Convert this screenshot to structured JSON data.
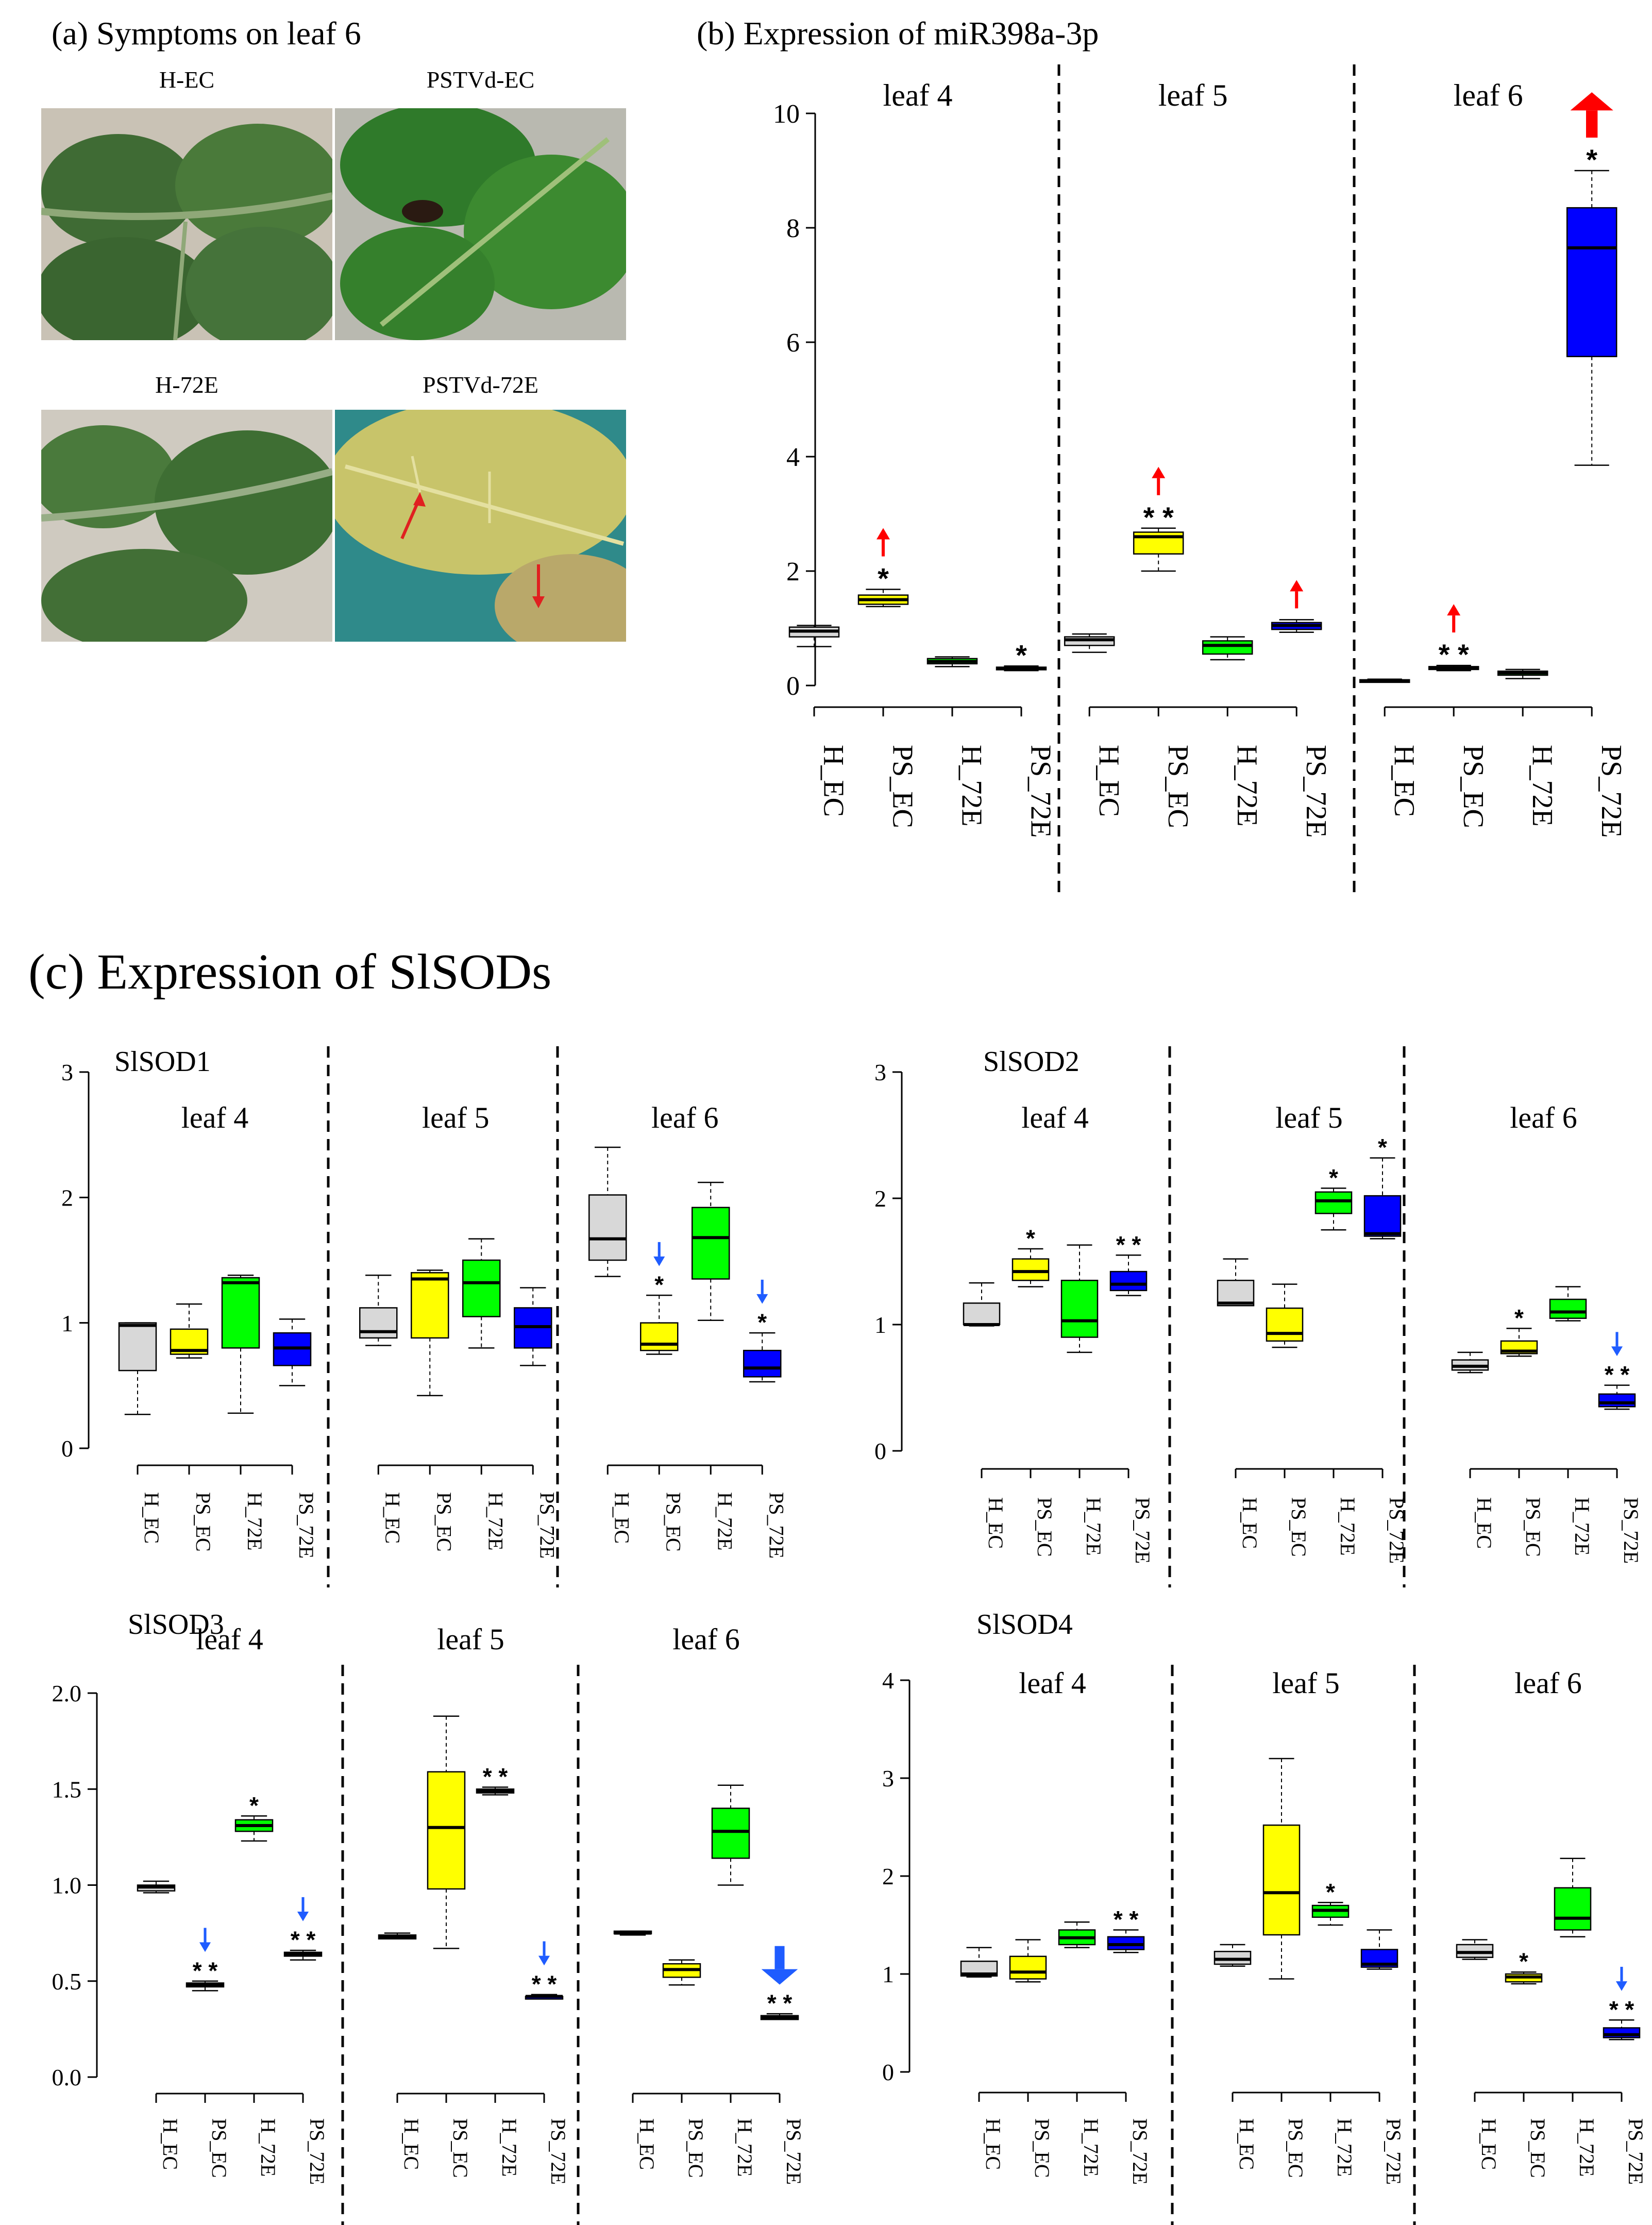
{
  "panel_a": {
    "title": "(a) Symptoms on leaf 6",
    "photos": [
      {
        "label": "H-EC",
        "tone": "healthy"
      },
      {
        "label": "PSTVd-EC",
        "tone": "necrotic"
      },
      {
        "label": "H-72E",
        "tone": "healthy"
      },
      {
        "label": "PSTVd-72E",
        "tone": "yellow"
      }
    ]
  },
  "panel_b_title": "(b) Expression of miR398a-3p",
  "panel_c_title": "(c) Expression of SlSODs",
  "colors": {
    "H_EC": "#d8d8d8",
    "PS_EC": "#ffff00",
    "H_72E": "#00ff00",
    "PS_72E": "#0000ff",
    "up_arrow": "#ff0000",
    "down_arrow": "#1f5cff"
  },
  "chart_data": [
    {
      "id": "miR398",
      "type": "box",
      "title": "",
      "ylim": [
        0,
        10
      ],
      "yticks": [
        "0",
        "2",
        "4",
        "6",
        "8",
        "10"
      ],
      "ytick_values": [
        0,
        2,
        4,
        6,
        8,
        10
      ],
      "categories": [
        "H_EC",
        "PS_EC",
        "H_72E",
        "PS_72E"
      ],
      "groups": [
        {
          "label": "leaf 4",
          "boxes": [
            {
              "cat": "H_EC",
              "min": 0.68,
              "q1": 0.85,
              "med": 0.95,
              "q3": 1.02,
              "max": 1.05,
              "sig": "",
              "arrow": ""
            },
            {
              "cat": "PS_EC",
              "min": 1.38,
              "q1": 1.42,
              "med": 1.5,
              "q3": 1.58,
              "max": 1.68,
              "sig": "*",
              "arrow": "up"
            },
            {
              "cat": "H_72E",
              "min": 0.33,
              "q1": 0.38,
              "med": 0.42,
              "q3": 0.47,
              "max": 0.5,
              "sig": "",
              "arrow": ""
            },
            {
              "cat": "PS_72E",
              "min": 0.26,
              "q1": 0.28,
              "med": 0.3,
              "q3": 0.32,
              "max": 0.34,
              "sig": "*",
              "arrow": ""
            }
          ]
        },
        {
          "label": "leaf 5",
          "boxes": [
            {
              "cat": "H_EC",
              "min": 0.58,
              "q1": 0.7,
              "med": 0.8,
              "q3": 0.85,
              "max": 0.9,
              "sig": "",
              "arrow": ""
            },
            {
              "cat": "PS_EC",
              "min": 2.0,
              "q1": 2.3,
              "med": 2.6,
              "q3": 2.68,
              "max": 2.75,
              "sig": "* *",
              "arrow": "up"
            },
            {
              "cat": "H_72E",
              "min": 0.45,
              "q1": 0.55,
              "med": 0.7,
              "q3": 0.78,
              "max": 0.85,
              "sig": "",
              "arrow": ""
            },
            {
              "cat": "PS_72E",
              "min": 0.93,
              "q1": 0.98,
              "med": 1.05,
              "q3": 1.1,
              "max": 1.15,
              "sig": "",
              "arrow": "up"
            }
          ]
        },
        {
          "label": "leaf 6",
          "boxes": [
            {
              "cat": "H_EC",
              "min": 0.06,
              "q1": 0.07,
              "med": 0.08,
              "q3": 0.1,
              "max": 0.11,
              "sig": "",
              "arrow": ""
            },
            {
              "cat": "PS_EC",
              "min": 0.26,
              "q1": 0.28,
              "med": 0.31,
              "q3": 0.33,
              "max": 0.35,
              "sig": "* *",
              "arrow": "up"
            },
            {
              "cat": "H_72E",
              "min": 0.12,
              "q1": 0.18,
              "med": 0.22,
              "q3": 0.25,
              "max": 0.28,
              "sig": "",
              "arrow": ""
            },
            {
              "cat": "PS_72E",
              "min": 3.85,
              "q1": 5.75,
              "med": 7.65,
              "q3": 8.35,
              "max": 9.0,
              "sig": "*",
              "arrow": "up-big"
            }
          ]
        }
      ]
    },
    {
      "id": "SlSOD1",
      "type": "box",
      "title": "SlSOD1",
      "ylim": [
        0,
        3
      ],
      "yticks": [
        "0",
        "1",
        "2",
        "3"
      ],
      "ytick_values": [
        0,
        1,
        2,
        3
      ],
      "categories": [
        "H_EC",
        "PS_EC",
        "H_72E",
        "PS_72E"
      ],
      "groups": [
        {
          "label": "leaf 4",
          "boxes": [
            {
              "cat": "H_EC",
              "min": 0.27,
              "q1": 0.62,
              "med": 0.98,
              "q3": 1.0,
              "max": 1.0,
              "sig": "",
              "arrow": ""
            },
            {
              "cat": "PS_EC",
              "min": 0.72,
              "q1": 0.75,
              "med": 0.78,
              "q3": 0.95,
              "max": 1.15,
              "sig": "",
              "arrow": ""
            },
            {
              "cat": "H_72E",
              "min": 0.28,
              "q1": 0.8,
              "med": 1.32,
              "q3": 1.36,
              "max": 1.38,
              "sig": "",
              "arrow": ""
            },
            {
              "cat": "PS_72E",
              "min": 0.5,
              "q1": 0.66,
              "med": 0.8,
              "q3": 0.92,
              "max": 1.03,
              "sig": "",
              "arrow": ""
            }
          ]
        },
        {
          "label": "leaf 5",
          "boxes": [
            {
              "cat": "H_EC",
              "min": 0.82,
              "q1": 0.88,
              "med": 0.93,
              "q3": 1.12,
              "max": 1.38,
              "sig": "",
              "arrow": ""
            },
            {
              "cat": "PS_EC",
              "min": 0.42,
              "q1": 0.88,
              "med": 1.35,
              "q3": 1.4,
              "max": 1.42,
              "sig": "",
              "arrow": ""
            },
            {
              "cat": "H_72E",
              "min": 0.8,
              "q1": 1.05,
              "med": 1.32,
              "q3": 1.5,
              "max": 1.67,
              "sig": "",
              "arrow": ""
            },
            {
              "cat": "PS_72E",
              "min": 0.66,
              "q1": 0.8,
              "med": 0.97,
              "q3": 1.12,
              "max": 1.28,
              "sig": "",
              "arrow": ""
            }
          ]
        },
        {
          "label": "leaf 6",
          "boxes": [
            {
              "cat": "H_EC",
              "min": 1.37,
              "q1": 1.5,
              "med": 1.67,
              "q3": 2.02,
              "max": 2.4,
              "sig": "",
              "arrow": ""
            },
            {
              "cat": "PS_EC",
              "min": 0.75,
              "q1": 0.78,
              "med": 0.83,
              "q3": 1.0,
              "max": 1.22,
              "sig": "*",
              "arrow": "down"
            },
            {
              "cat": "H_72E",
              "min": 1.02,
              "q1": 1.35,
              "med": 1.68,
              "q3": 1.92,
              "max": 2.12,
              "sig": "",
              "arrow": ""
            },
            {
              "cat": "PS_72E",
              "min": 0.53,
              "q1": 0.57,
              "med": 0.64,
              "q3": 0.78,
              "max": 0.92,
              "sig": "*",
              "arrow": "down"
            }
          ]
        }
      ]
    },
    {
      "id": "SlSOD2",
      "type": "box",
      "title": "SlSOD2",
      "ylim": [
        0,
        3
      ],
      "yticks": [
        "0",
        "1",
        "2",
        "3"
      ],
      "ytick_values": [
        0,
        1,
        2,
        3
      ],
      "categories": [
        "H_EC",
        "PS_EC",
        "H_72E",
        "PS_72E"
      ],
      "groups": [
        {
          "label": "leaf 4",
          "boxes": [
            {
              "cat": "H_EC",
              "min": 0.99,
              "q1": 1.0,
              "med": 1.0,
              "q3": 1.17,
              "max": 1.33,
              "sig": "",
              "arrow": ""
            },
            {
              "cat": "PS_EC",
              "min": 1.3,
              "q1": 1.35,
              "med": 1.42,
              "q3": 1.52,
              "max": 1.6,
              "sig": "*",
              "arrow": ""
            },
            {
              "cat": "H_72E",
              "min": 0.78,
              "q1": 0.9,
              "med": 1.03,
              "q3": 1.35,
              "max": 1.63,
              "sig": "",
              "arrow": ""
            },
            {
              "cat": "PS_72E",
              "min": 1.23,
              "q1": 1.27,
              "med": 1.32,
              "q3": 1.42,
              "max": 1.55,
              "sig": "* *",
              "arrow": ""
            }
          ]
        },
        {
          "label": "leaf 5",
          "boxes": [
            {
              "cat": "H_EC",
              "min": 1.15,
              "q1": 1.15,
              "med": 1.17,
              "q3": 1.35,
              "max": 1.52,
              "sig": "",
              "arrow": ""
            },
            {
              "cat": "PS_EC",
              "min": 0.82,
              "q1": 0.87,
              "med": 0.93,
              "q3": 1.13,
              "max": 1.32,
              "sig": "",
              "arrow": ""
            },
            {
              "cat": "H_72E",
              "min": 1.75,
              "q1": 1.88,
              "med": 1.98,
              "q3": 2.05,
              "max": 2.08,
              "sig": "*",
              "arrow": ""
            },
            {
              "cat": "PS_72E",
              "min": 1.68,
              "q1": 1.7,
              "med": 1.72,
              "q3": 2.02,
              "max": 2.32,
              "sig": "*",
              "arrow": ""
            }
          ]
        },
        {
          "label": "leaf 6",
          "boxes": [
            {
              "cat": "H_EC",
              "min": 0.62,
              "q1": 0.64,
              "med": 0.67,
              "q3": 0.72,
              "max": 0.78,
              "sig": "",
              "arrow": ""
            },
            {
              "cat": "PS_EC",
              "min": 0.75,
              "q1": 0.77,
              "med": 0.79,
              "q3": 0.87,
              "max": 0.97,
              "sig": "*",
              "arrow": ""
            },
            {
              "cat": "H_72E",
              "min": 1.03,
              "q1": 1.05,
              "med": 1.1,
              "q3": 1.2,
              "max": 1.3,
              "sig": "",
              "arrow": ""
            },
            {
              "cat": "PS_72E",
              "min": 0.33,
              "q1": 0.35,
              "med": 0.38,
              "q3": 0.45,
              "max": 0.52,
              "sig": "* *",
              "arrow": "down"
            }
          ]
        }
      ]
    },
    {
      "id": "SlSOD3",
      "type": "box",
      "title": "SlSOD3",
      "ylim": [
        0,
        2
      ],
      "yticks": [
        "0.0",
        "0.5",
        "1.0",
        "1.5",
        "2.0"
      ],
      "ytick_values": [
        0,
        0.5,
        1.0,
        1.5,
        2.0
      ],
      "categories": [
        "H_EC",
        "PS_EC",
        "H_72E",
        "PS_72E"
      ],
      "groups": [
        {
          "label": "leaf 4",
          "boxes": [
            {
              "cat": "H_EC",
              "min": 0.96,
              "q1": 0.97,
              "med": 0.99,
              "q3": 1.0,
              "max": 1.02,
              "sig": "",
              "arrow": ""
            },
            {
              "cat": "PS_EC",
              "min": 0.45,
              "q1": 0.47,
              "med": 0.48,
              "q3": 0.49,
              "max": 0.5,
              "sig": "* *",
              "arrow": "down"
            },
            {
              "cat": "H_72E",
              "min": 1.23,
              "q1": 1.28,
              "med": 1.31,
              "q3": 1.34,
              "max": 1.36,
              "sig": "*",
              "arrow": ""
            },
            {
              "cat": "PS_72E",
              "min": 0.61,
              "q1": 0.63,
              "med": 0.64,
              "q3": 0.65,
              "max": 0.66,
              "sig": "* *",
              "arrow": "down"
            }
          ]
        },
        {
          "label": "leaf 5",
          "boxes": [
            {
              "cat": "H_EC",
              "min": 0.72,
              "q1": 0.72,
              "med": 0.73,
              "q3": 0.74,
              "max": 0.75,
              "sig": "",
              "arrow": ""
            },
            {
              "cat": "PS_EC",
              "min": 0.67,
              "q1": 0.98,
              "med": 1.3,
              "q3": 1.59,
              "max": 1.88,
              "sig": "",
              "arrow": ""
            },
            {
              "cat": "H_72E",
              "min": 1.47,
              "q1": 1.48,
              "med": 1.49,
              "q3": 1.5,
              "max": 1.51,
              "sig": "* *",
              "arrow": ""
            },
            {
              "cat": "PS_72E",
              "min": 0.42,
              "q1": 0.42,
              "med": 0.42,
              "q3": 0.42,
              "max": 0.43,
              "sig": "* *",
              "arrow": "down"
            }
          ]
        },
        {
          "label": "leaf 6",
          "boxes": [
            {
              "cat": "H_EC",
              "min": 0.74,
              "q1": 0.75,
              "med": 0.75,
              "q3": 0.76,
              "max": 0.76,
              "sig": "",
              "arrow": ""
            },
            {
              "cat": "PS_EC",
              "min": 0.48,
              "q1": 0.52,
              "med": 0.56,
              "q3": 0.59,
              "max": 0.61,
              "sig": "",
              "arrow": ""
            },
            {
              "cat": "H_72E",
              "min": 1.0,
              "q1": 1.14,
              "med": 1.28,
              "q3": 1.4,
              "max": 1.52,
              "sig": "",
              "arrow": ""
            },
            {
              "cat": "PS_72E",
              "min": 0.3,
              "q1": 0.3,
              "med": 0.31,
              "q3": 0.32,
              "max": 0.33,
              "sig": "* *",
              "arrow": "down-big"
            }
          ]
        }
      ]
    },
    {
      "id": "SlSOD4",
      "type": "box",
      "title": "SlSOD4",
      "ylim": [
        0,
        4
      ],
      "yticks": [
        "0",
        "1",
        "2",
        "3",
        "4"
      ],
      "ytick_values": [
        0,
        1,
        2,
        3,
        4
      ],
      "categories": [
        "H_EC",
        "PS_EC",
        "H_72E",
        "PS_72E"
      ],
      "groups": [
        {
          "label": "leaf 4",
          "boxes": [
            {
              "cat": "H_EC",
              "min": 0.97,
              "q1": 0.98,
              "med": 1.0,
              "q3": 1.13,
              "max": 1.27,
              "sig": "",
              "arrow": ""
            },
            {
              "cat": "PS_EC",
              "min": 0.92,
              "q1": 0.95,
              "med": 1.02,
              "q3": 1.18,
              "max": 1.35,
              "sig": "",
              "arrow": ""
            },
            {
              "cat": "H_72E",
              "min": 1.27,
              "q1": 1.3,
              "med": 1.37,
              "q3": 1.45,
              "max": 1.53,
              "sig": "",
              "arrow": ""
            },
            {
              "cat": "PS_72E",
              "min": 1.22,
              "q1": 1.25,
              "med": 1.3,
              "q3": 1.38,
              "max": 1.45,
              "sig": "* *",
              "arrow": ""
            }
          ]
        },
        {
          "label": "leaf 5",
          "boxes": [
            {
              "cat": "H_EC",
              "min": 1.08,
              "q1": 1.1,
              "med": 1.15,
              "q3": 1.23,
              "max": 1.3,
              "sig": "",
              "arrow": ""
            },
            {
              "cat": "PS_EC",
              "min": 0.95,
              "q1": 1.4,
              "med": 1.83,
              "q3": 2.52,
              "max": 3.2,
              "sig": "",
              "arrow": ""
            },
            {
              "cat": "H_72E",
              "min": 1.5,
              "q1": 1.58,
              "med": 1.65,
              "q3": 1.7,
              "max": 1.73,
              "sig": "*",
              "arrow": ""
            },
            {
              "cat": "PS_72E",
              "min": 1.05,
              "q1": 1.07,
              "med": 1.1,
              "q3": 1.25,
              "max": 1.45,
              "sig": "",
              "arrow": ""
            }
          ]
        },
        {
          "label": "leaf 6",
          "boxes": [
            {
              "cat": "H_EC",
              "min": 1.15,
              "q1": 1.17,
              "med": 1.22,
              "q3": 1.3,
              "max": 1.35,
              "sig": "",
              "arrow": ""
            },
            {
              "cat": "PS_EC",
              "min": 0.9,
              "q1": 0.92,
              "med": 0.97,
              "q3": 1.0,
              "max": 1.02,
              "sig": "*",
              "arrow": ""
            },
            {
              "cat": "H_72E",
              "min": 1.38,
              "q1": 1.45,
              "med": 1.57,
              "q3": 1.88,
              "max": 2.18,
              "sig": "",
              "arrow": ""
            },
            {
              "cat": "PS_72E",
              "min": 0.33,
              "q1": 0.35,
              "med": 0.38,
              "q3": 0.45,
              "max": 0.53,
              "sig": "* *",
              "arrow": "down"
            }
          ]
        }
      ]
    }
  ]
}
